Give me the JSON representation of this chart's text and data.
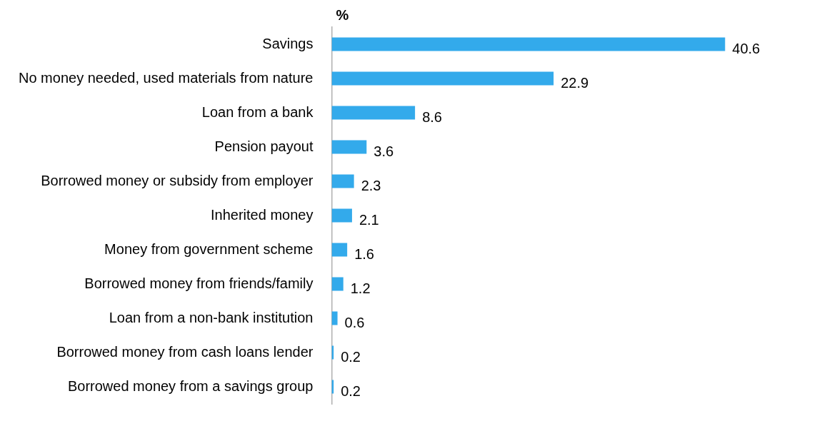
{
  "chart_data": {
    "type": "bar",
    "orientation": "horizontal",
    "xlabel": "%",
    "categories": [
      "Savings",
      "No money needed, used materials from nature",
      "Loan from a bank",
      "Pension payout",
      "Borrowed money or subsidy from employer",
      "Inherited money",
      "Money from government scheme",
      "Borrowed money from friends/family",
      "Loan from a non-bank institution",
      "Borrowed money from cash loans lender",
      "Borrowed money from a savings group"
    ],
    "values": [
      40.6,
      22.9,
      8.6,
      3.6,
      2.3,
      2.1,
      1.6,
      1.2,
      0.6,
      0.2,
      0.2
    ],
    "color": "#33aaeb",
    "data_labels": true,
    "legend": false
  }
}
